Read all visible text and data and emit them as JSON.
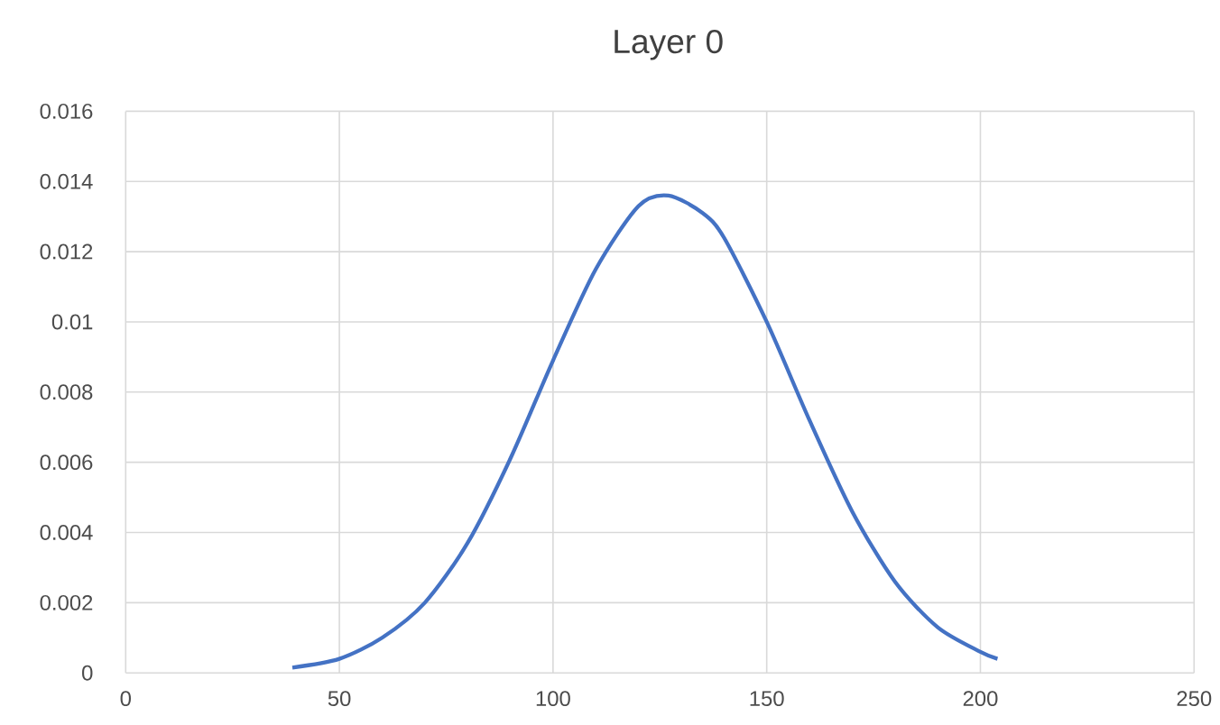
{
  "chart_data": {
    "type": "line",
    "title": "Layer 0",
    "x": [
      39,
      50,
      60,
      70,
      80,
      90,
      100,
      110,
      120,
      127,
      135,
      140,
      150,
      160,
      170,
      180,
      190,
      200,
      204
    ],
    "series": [
      {
        "color": "#4472c4",
        "values": [
          0.00015,
          0.0004,
          0.001,
          0.002,
          0.0037,
          0.0061,
          0.0089,
          0.0115,
          0.0133,
          0.0136,
          0.0131,
          0.0124,
          0.01,
          0.0072,
          0.0046,
          0.0026,
          0.0013,
          0.0006,
          0.0004
        ]
      }
    ],
    "xlim": [
      0,
      250
    ],
    "xticks": [
      0,
      50,
      100,
      150,
      200,
      250
    ],
    "ylim": [
      0,
      0.016
    ],
    "yticks": [
      0,
      0.002,
      0.004,
      0.006,
      0.008,
      0.01,
      0.012,
      0.014,
      0.016
    ],
    "grid": true,
    "marker": "none",
    "line_style": "solid"
  }
}
